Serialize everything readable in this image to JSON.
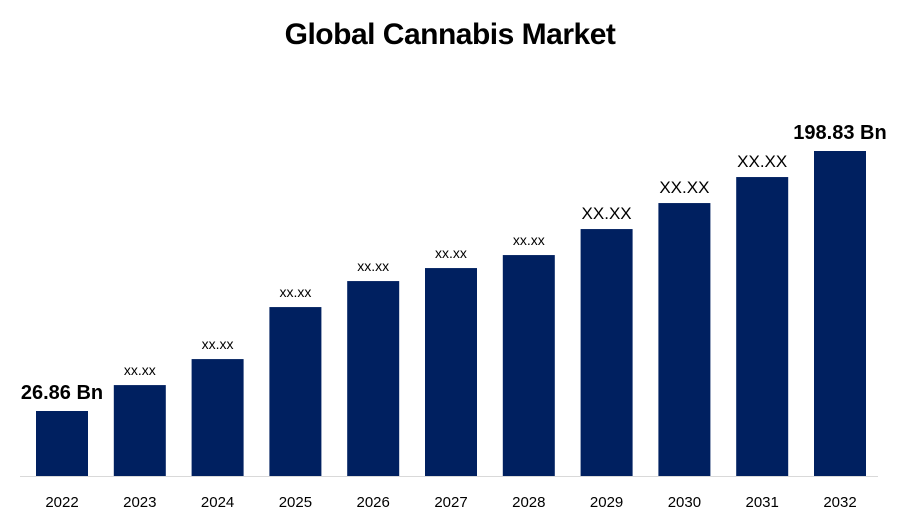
{
  "chart_data": {
    "type": "bar",
    "title": "Global Cannabis Market",
    "xlabel": "",
    "ylabel": "",
    "categories": [
      "2022",
      "2023",
      "2024",
      "2025",
      "2026",
      "2027",
      "2028",
      "2029",
      "2030",
      "2031",
      "2032"
    ],
    "values": [
      26.86,
      44.0,
      61.2,
      95.6,
      112.8,
      121.4,
      130.0,
      147.2,
      164.4,
      181.6,
      198.83
    ],
    "data_labels": [
      "26.86 Bn",
      "xx.xx",
      "xx.xx",
      "xx.xx",
      "xx.xx",
      "xx.xx",
      "xx.xx",
      "XX.XX",
      "XX.XX",
      "XX.XX",
      "198.83 Bn"
    ],
    "bar_color": "#002060",
    "grid": false,
    "legend": "none"
  }
}
